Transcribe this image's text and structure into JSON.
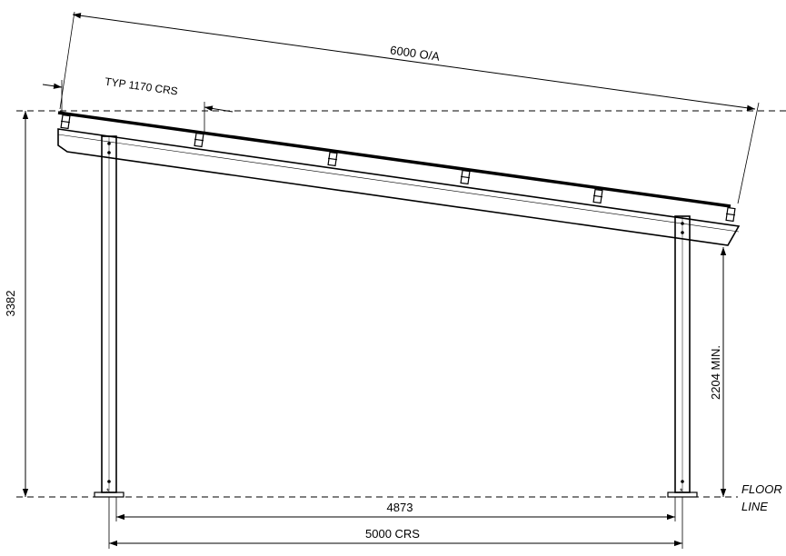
{
  "dimensions": {
    "overall_length": "6000 O/A",
    "typical_spacing": "TYP 1170 CRS",
    "total_height": "3382",
    "min_clearance": "2204 MIN.",
    "inner_span": "4873",
    "post_centres": "5000 CRS"
  },
  "reference_labels": {
    "floor_line_1": "FLOOR",
    "floor_line_2": "LINE"
  }
}
